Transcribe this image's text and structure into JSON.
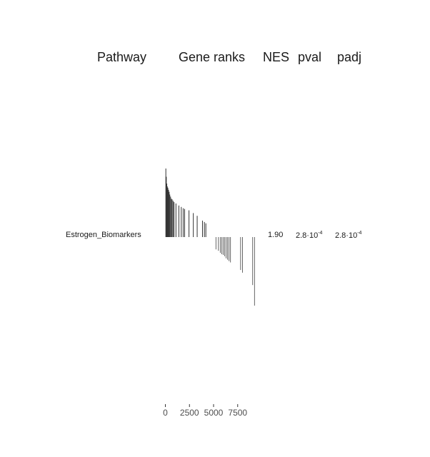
{
  "header": {
    "pathway": "Pathway",
    "gene_ranks": "Gene ranks",
    "nes": "NES",
    "pval": "pval",
    "padj": "padj"
  },
  "row": {
    "pathway": "Estrogen_Biomarkers",
    "nes": "1.90",
    "pval_mantissa": "2.8·10",
    "pval_exponent": "-4",
    "padj_mantissa": "2.8·10",
    "padj_exponent": "-4"
  },
  "chart_data": {
    "type": "barcode",
    "title": "",
    "xlabel": "Gene ranks",
    "ylabel": "",
    "xlim": [
      0,
      10000
    ],
    "x_ticks": [
      0,
      2500,
      5000,
      7500
    ],
    "x_tick_labels": [
      "0",
      "2500",
      "5000",
      "7500"
    ],
    "ylim": [
      -1,
      1
    ],
    "positive_color": "#333333",
    "negative_color": "#666666",
    "positive_bars": [
      {
        "rank": 50,
        "stat": 1.0
      },
      {
        "rank": 100,
        "stat": 0.88
      },
      {
        "rank": 150,
        "stat": 0.78
      },
      {
        "rank": 200,
        "stat": 0.74
      },
      {
        "rank": 260,
        "stat": 0.72
      },
      {
        "rank": 330,
        "stat": 0.69
      },
      {
        "rank": 400,
        "stat": 0.66
      },
      {
        "rank": 460,
        "stat": 0.62
      },
      {
        "rank": 540,
        "stat": 0.59
      },
      {
        "rank": 620,
        "stat": 0.56
      },
      {
        "rank": 700,
        "stat": 0.55
      },
      {
        "rank": 800,
        "stat": 0.53
      },
      {
        "rank": 900,
        "stat": 0.51
      },
      {
        "rank": 1100,
        "stat": 0.49
      },
      {
        "rank": 1400,
        "stat": 0.46
      },
      {
        "rank": 1650,
        "stat": 0.44
      },
      {
        "rank": 1850,
        "stat": 0.42
      },
      {
        "rank": 2000,
        "stat": 0.41
      },
      {
        "rank": 2450,
        "stat": 0.39
      },
      {
        "rank": 2900,
        "stat": 0.35
      },
      {
        "rank": 3300,
        "stat": 0.31
      },
      {
        "rank": 3850,
        "stat": 0.24
      },
      {
        "rank": 4050,
        "stat": 0.22
      },
      {
        "rank": 4200,
        "stat": 0.2
      }
    ],
    "negative_bars": [
      {
        "rank": 5250,
        "stat": -0.18
      },
      {
        "rank": 5500,
        "stat": -0.2
      },
      {
        "rank": 5700,
        "stat": -0.23
      },
      {
        "rank": 5850,
        "stat": -0.25
      },
      {
        "rank": 6000,
        "stat": -0.26
      },
      {
        "rank": 6150,
        "stat": -0.28
      },
      {
        "rank": 6300,
        "stat": -0.31
      },
      {
        "rank": 6450,
        "stat": -0.33
      },
      {
        "rank": 6600,
        "stat": -0.35
      },
      {
        "rank": 6750,
        "stat": -0.37
      },
      {
        "rank": 7800,
        "stat": -0.48
      },
      {
        "rank": 8000,
        "stat": -0.52
      },
      {
        "rank": 9050,
        "stat": -0.7
      },
      {
        "rank": 9250,
        "stat": -1.0
      }
    ]
  }
}
